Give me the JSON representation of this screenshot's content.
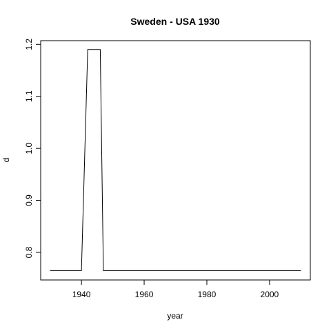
{
  "chart_data": {
    "type": "line",
    "title": "Sweden - USA 1930",
    "xlabel": "year",
    "ylabel": "d",
    "xlim": [
      1927,
      2013
    ],
    "ylim": [
      0.747,
      1.207
    ],
    "x_ticks": [
      1940,
      1960,
      1980,
      2000
    ],
    "y_ticks": [
      0.8,
      0.9,
      1.0,
      1.1,
      1.2
    ],
    "y_tick_labels": [
      "0.8",
      "0.9",
      "1.0",
      "1.1",
      "1.2"
    ],
    "grid": false,
    "series": [
      {
        "x": [
          1930,
          1940,
          1942,
          1946,
          1947,
          2010
        ],
        "y": [
          0.765,
          0.765,
          1.19,
          1.19,
          0.765,
          0.765
        ]
      }
    ]
  }
}
